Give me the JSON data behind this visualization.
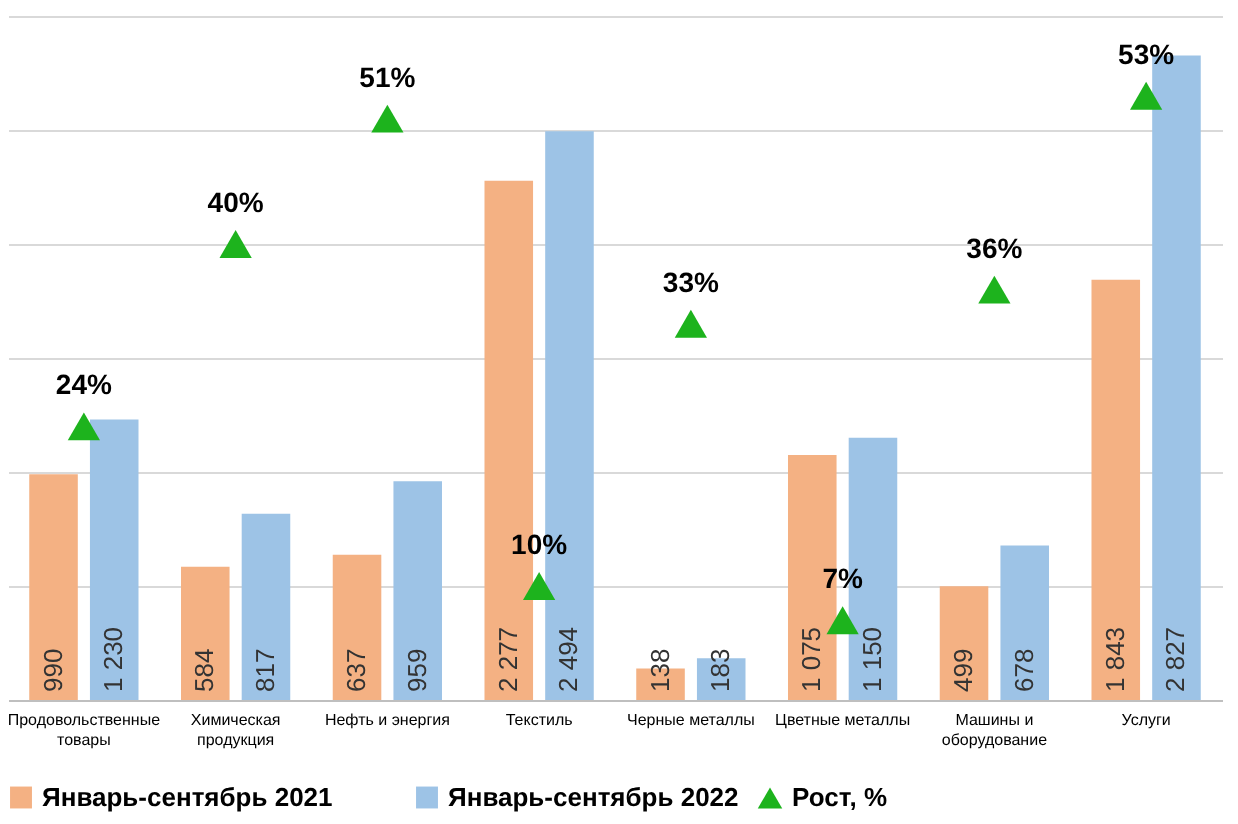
{
  "chart_data": {
    "type": "bar",
    "categories": [
      "Продовольственные товары",
      "Химическая продукция",
      "Нефть и энергия",
      "Текстиль",
      "Черные металлы",
      "Цветные металлы",
      "Машины и оборудование",
      "Услуги"
    ],
    "series": [
      {
        "name": "Январь-сентябрь 2021",
        "color": "#f4b183",
        "values": [
          990,
          584,
          637,
          2277,
          138,
          1075,
          499,
          1843
        ],
        "value_labels": [
          "990",
          "584",
          "637",
          "2 277",
          "138",
          "1 075",
          "499",
          "1 843"
        ]
      },
      {
        "name": "Январь-сентябрь 2022",
        "color": "#9dc3e6",
        "values": [
          1230,
          817,
          959,
          2494,
          183,
          1150,
          678,
          2827
        ],
        "value_labels": [
          "1 230",
          "817",
          "959",
          "2 494",
          "183",
          "1 150",
          "678",
          "2 827"
        ]
      },
      {
        "name": "Рост, %",
        "type": "scatter",
        "marker": "triangle",
        "color": "#1db31d",
        "axis": "y2",
        "values": [
          24,
          40,
          51,
          10,
          33,
          7,
          36,
          53
        ],
        "value_labels": [
          "24%",
          "40%",
          "51%",
          "10%",
          "33%",
          "7%",
          "36%",
          "53%"
        ]
      }
    ],
    "ylim": [
      0,
      3000
    ],
    "yticks": [
      {
        "value": 0,
        "label": null
      },
      {
        "value": 500,
        "label": null
      },
      {
        "value": 1000,
        "label": null
      },
      {
        "value": 1500,
        "label": null
      },
      {
        "value": 2000,
        "label": null
      },
      {
        "value": 2500,
        "label": null
      },
      {
        "value": 3000,
        "label": null
      }
    ],
    "y2lim": [
      0,
      60
    ],
    "tick_labels": "x",
    "grid": "y",
    "legend": "bottom"
  }
}
